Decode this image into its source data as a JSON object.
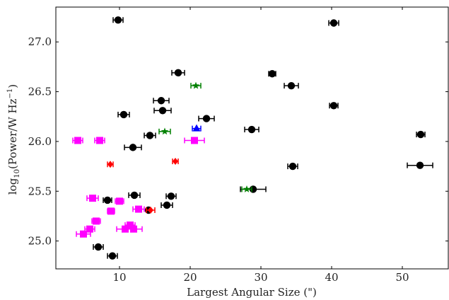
{
  "chart_data": {
    "type": "scatter",
    "title": "",
    "xlabel": "Largest Angular Size (\")",
    "ylabel_main": "log",
    "ylabel_sub": "10",
    "ylabel_rest": "(Power/W Hz",
    "ylabel_sup": "−1",
    "ylabel_end": ")",
    "xlim": [
      1,
      56.5
    ],
    "ylim": [
      24.72,
      27.35
    ],
    "xticks": [
      10,
      20,
      30,
      40,
      50
    ],
    "yticks": [
      25.0,
      25.5,
      26.0,
      26.5,
      27.0
    ],
    "ytick_labels": [
      "25.0",
      "25.5",
      "26.0",
      "26.5",
      "27.0"
    ],
    "grid": false,
    "legend": "none",
    "series": [
      {
        "color": "#000000",
        "marker": "circle",
        "points": [
          {
            "x": 9.8,
            "y": 27.22,
            "xerr": 0.7
          },
          {
            "x": 40.3,
            "y": 27.19,
            "xerr": 0.7
          },
          {
            "x": 18.3,
            "y": 26.69,
            "xerr": 0.9
          },
          {
            "x": 31.6,
            "y": 26.68,
            "xerr": 0.5
          },
          {
            "x": 34.3,
            "y": 26.56,
            "xerr": 1.0
          },
          {
            "x": 15.9,
            "y": 26.41,
            "xerr": 1.1
          },
          {
            "x": 40.3,
            "y": 26.36,
            "xerr": 0.6
          },
          {
            "x": 16.1,
            "y": 26.31,
            "xerr": 1.2
          },
          {
            "x": 10.6,
            "y": 26.27,
            "xerr": 0.8
          },
          {
            "x": 22.3,
            "y": 26.23,
            "xerr": 1.1
          },
          {
            "x": 28.7,
            "y": 26.12,
            "xerr": 1.0
          },
          {
            "x": 52.6,
            "y": 26.07,
            "xerr": 0.6
          },
          {
            "x": 14.3,
            "y": 26.06,
            "xerr": 0.8
          },
          {
            "x": 11.9,
            "y": 25.94,
            "xerr": 1.2
          },
          {
            "x": 34.5,
            "y": 25.75,
            "xerr": 0.7
          },
          {
            "x": 52.5,
            "y": 25.76,
            "xerr": 1.8
          },
          {
            "x": 28.9,
            "y": 25.52,
            "xerr": 1.8
          },
          {
            "x": 12.1,
            "y": 25.46,
            "xerr": 0.8
          },
          {
            "x": 17.3,
            "y": 25.45,
            "xerr": 0.7
          },
          {
            "x": 8.3,
            "y": 25.41,
            "xerr": 0.6
          },
          {
            "x": 16.7,
            "y": 25.36,
            "xerr": 0.8
          },
          {
            "x": 14.1,
            "y": 25.31,
            "xerr": 0.3
          },
          {
            "x": 7.0,
            "y": 24.94,
            "xerr": 0.7
          },
          {
            "x": 9.0,
            "y": 24.85,
            "xerr": 0.7
          }
        ]
      },
      {
        "color": "#ff00ff",
        "marker": "square",
        "points": [
          {
            "x": 4.1,
            "y": 26.01,
            "xerr": 0.7
          },
          {
            "x": 7.2,
            "y": 26.01,
            "xerr": 0.7
          },
          {
            "x": 20.6,
            "y": 26.01,
            "xerr": 1.4
          },
          {
            "x": 6.2,
            "y": 25.43,
            "xerr": 0.8
          },
          {
            "x": 10.0,
            "y": 25.4,
            "xerr": 0.6
          },
          {
            "x": 12.7,
            "y": 25.32,
            "xerr": 0.8
          },
          {
            "x": 8.8,
            "y": 25.3,
            "xerr": 0.5
          },
          {
            "x": 6.7,
            "y": 25.2,
            "xerr": 0.6
          },
          {
            "x": 11.5,
            "y": 25.16,
            "xerr": 0.7
          },
          {
            "x": 10.8,
            "y": 25.12,
            "xerr": 1.2
          },
          {
            "x": 12.0,
            "y": 25.12,
            "xerr": 1.2
          },
          {
            "x": 5.8,
            "y": 25.12,
            "xerr": 0.7
          },
          {
            "x": 4.9,
            "y": 25.07,
            "xerr": 1.0
          }
        ]
      },
      {
        "color": "#008000",
        "marker": "star",
        "points": [
          {
            "x": 20.8,
            "y": 26.56,
            "xerr": 0.7
          },
          {
            "x": 16.4,
            "y": 26.1,
            "xerr": 0.8
          },
          {
            "x": 28.0,
            "y": 25.52,
            "xerr": 0.7
          }
        ]
      },
      {
        "color": "#ff0000",
        "marker": "diamond",
        "points": [
          {
            "x": 8.7,
            "y": 25.77,
            "xerr": 0.4
          },
          {
            "x": 17.9,
            "y": 25.8,
            "xerr": 0.4
          },
          {
            "x": 14.4,
            "y": 25.31,
            "xerr": 0.6
          }
        ]
      },
      {
        "color": "#0000ff",
        "marker": "triangle",
        "points": [
          {
            "x": 20.9,
            "y": 26.13,
            "xerr": 0.6
          }
        ]
      }
    ]
  }
}
